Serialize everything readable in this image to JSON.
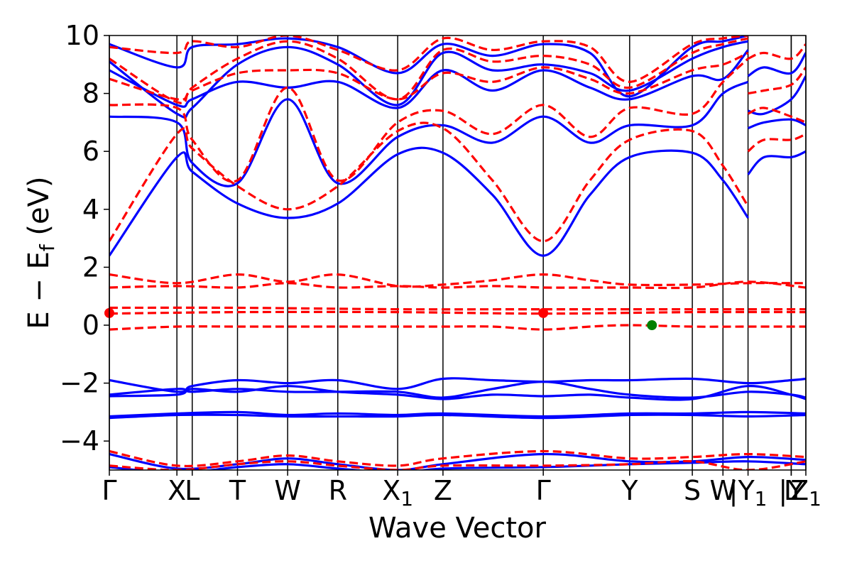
{
  "chart_data": {
    "type": "line",
    "title": "",
    "xlabel": "Wave Vector",
    "ylabel": "E − E",
    "ylabel_sub": "f",
    "ylabel_unit": " (eV)",
    "ylim": [
      -5,
      10
    ],
    "xlim": [
      0,
      1
    ],
    "yticks": [
      10,
      8,
      6,
      4,
      2,
      0,
      -2,
      -4
    ],
    "ytick_labels": [
      "10",
      "8",
      "6",
      "4",
      "2",
      "0",
      "−2",
      "−4"
    ],
    "grid": false,
    "legend": "none",
    "kpoints": [
      {
        "label": "Γ",
        "sub": "",
        "x": 0.0
      },
      {
        "label": "X",
        "sub": "",
        "x": 0.097
      },
      {
        "label": "L",
        "sub": "",
        "x": 0.119
      },
      {
        "label": "T",
        "sub": "",
        "x": 0.184
      },
      {
        "label": "W",
        "sub": "",
        "x": 0.256
      },
      {
        "label": "R",
        "sub": "",
        "x": 0.328
      },
      {
        "label": "X",
        "sub": "1",
        "x": 0.414
      },
      {
        "label": "Z",
        "sub": "",
        "x": 0.479
      },
      {
        "label": "Γ",
        "sub": "",
        "x": 0.623
      },
      {
        "label": "Y",
        "sub": "",
        "x": 0.747
      },
      {
        "label": "S",
        "sub": "",
        "x": 0.837
      },
      {
        "label": "W",
        "sub": "",
        "x": 0.881
      },
      {
        "label": "|Y",
        "sub": "1",
        "x": 0.917
      },
      {
        "label": "L",
        "sub": "",
        "x": 0.979
      },
      {
        "label": "|Y",
        "sub": "",
        "x": 0.979
      },
      {
        "label": "Z",
        "sub": "1",
        "x": 1.0
      }
    ],
    "series": [
      {
        "style": "solid",
        "color": "#0000ff",
        "bands": [
          {
            "x": [
              0,
              0.097,
              0.119,
              0.184,
              0.256,
              0.328,
              0.414,
              0.479,
              0.55,
              0.623,
              0.69,
              0.747,
              0.837,
              0.881,
              0.917
            ],
            "y": [
              2.4,
              5.8,
              5.3,
              4.2,
              3.7,
              4.2,
              5.9,
              5.95,
              4.5,
              2.4,
              4.5,
              5.8,
              5.95,
              5.0,
              3.7
            ]
          },
          {
            "x": [
              0,
              0.097,
              0.119,
              0.184,
              0.256,
              0.328,
              0.414,
              0.479,
              0.55,
              0.623,
              0.69,
              0.747,
              0.837,
              0.881,
              0.917
            ],
            "y": [
              7.2,
              7.0,
              5.6,
              4.9,
              7.8,
              4.9,
              6.5,
              6.9,
              6.3,
              7.2,
              6.3,
              6.9,
              6.9,
              8.0,
              8.4
            ]
          },
          {
            "x": [
              0,
              0.097,
              0.119,
              0.184,
              0.256,
              0.328,
              0.414,
              0.479,
              0.55,
              0.623,
              0.69,
              0.747,
              0.837,
              0.881,
              0.917
            ],
            "y": [
              8.8,
              7.6,
              7.8,
              8.4,
              8.2,
              8.4,
              7.5,
              8.8,
              8.1,
              8.8,
              8.2,
              7.8,
              8.6,
              8.5,
              9.5
            ]
          },
          {
            "x": [
              0,
              0.097,
              0.119,
              0.184,
              0.256,
              0.328,
              0.414,
              0.479,
              0.55,
              0.623,
              0.69,
              0.747,
              0.837,
              0.881,
              0.917
            ],
            "y": [
              9.1,
              7.3,
              7.5,
              9.0,
              9.6,
              9.0,
              7.6,
              9.4,
              8.8,
              9.0,
              8.7,
              8.1,
              9.2,
              9.6,
              9.8
            ]
          },
          {
            "x": [
              0,
              0.097,
              0.119,
              0.184,
              0.256,
              0.328,
              0.414,
              0.479,
              0.55,
              0.623,
              0.69,
              0.747,
              0.837,
              0.881,
              0.917
            ],
            "y": [
              9.7,
              8.9,
              9.6,
              9.7,
              9.9,
              9.6,
              8.7,
              9.7,
              9.3,
              9.7,
              9.4,
              7.9,
              9.6,
              9.8,
              10.0
            ]
          },
          {
            "x": [
              0.917,
              0.94,
              0.979,
              1.0
            ],
            "y": [
              5.2,
              5.8,
              5.8,
              6.0
            ]
          },
          {
            "x": [
              0.917,
              0.94,
              0.979,
              1.0
            ],
            "y": [
              6.8,
              7.0,
              7.1,
              6.9
            ]
          },
          {
            "x": [
              0.917,
              0.94,
              0.979,
              1.0
            ],
            "y": [
              7.4,
              7.3,
              7.8,
              8.6
            ]
          },
          {
            "x": [
              0.917,
              0.94,
              0.979,
              1.0
            ],
            "y": [
              8.6,
              8.9,
              8.7,
              9.4
            ]
          },
          {
            "x": [
              0,
              0.097,
              0.119,
              0.184,
              0.256,
              0.328,
              0.414,
              0.479,
              0.55,
              0.623,
              0.69,
              0.747,
              0.837,
              0.917,
              0.979,
              1.0
            ],
            "y": [
              -1.9,
              -2.3,
              -2.1,
              -1.9,
              -2.0,
              -1.9,
              -2.2,
              -1.85,
              -1.9,
              -1.95,
              -1.9,
              -1.9,
              -1.85,
              -2.0,
              -1.9,
              -1.85
            ]
          },
          {
            "x": [
              0,
              0.097,
              0.119,
              0.184,
              0.256,
              0.328,
              0.414,
              0.479,
              0.55,
              0.623,
              0.69,
              0.747,
              0.837,
              0.917,
              0.979,
              1.0
            ],
            "y": [
              -2.4,
              -2.2,
              -2.3,
              -2.2,
              -2.3,
              -2.3,
              -2.3,
              -2.5,
              -2.2,
              -1.95,
              -2.2,
              -2.4,
              -2.5,
              -2.3,
              -2.4,
              -2.5
            ]
          },
          {
            "x": [
              0,
              0.097,
              0.119,
              0.184,
              0.256,
              0.328,
              0.414,
              0.479,
              0.55,
              0.623,
              0.69,
              0.747,
              0.837,
              0.917,
              0.979,
              1.0
            ],
            "y": [
              -2.45,
              -2.4,
              -2.2,
              -2.3,
              -2.1,
              -2.3,
              -2.4,
              -2.55,
              -2.4,
              -2.45,
              -2.4,
              -2.5,
              -2.55,
              -2.1,
              -2.4,
              -2.55
            ]
          },
          {
            "x": [
              0,
              0.097,
              0.184,
              0.256,
              0.328,
              0.414,
              0.479,
              0.623,
              0.747,
              0.837,
              0.917,
              1.0
            ],
            "y": [
              -3.15,
              -3.05,
              -3.0,
              -3.1,
              -3.05,
              -3.1,
              -3.05,
              -3.15,
              -3.05,
              -3.05,
              -3.0,
              -3.05
            ]
          },
          {
            "x": [
              0,
              0.097,
              0.184,
              0.256,
              0.328,
              0.414,
              0.479,
              0.623,
              0.747,
              0.837,
              0.917,
              1.0
            ],
            "y": [
              -3.2,
              -3.1,
              -3.1,
              -3.15,
              -3.15,
              -3.15,
              -3.1,
              -3.2,
              -3.1,
              -3.1,
              -3.15,
              -3.1
            ]
          },
          {
            "x": [
              0,
              0.097,
              0.184,
              0.256,
              0.328,
              0.414,
              0.479,
              0.623,
              0.747,
              0.837,
              0.917,
              1.0
            ],
            "y": [
              -4.45,
              -4.95,
              -4.8,
              -4.6,
              -4.8,
              -5.0,
              -4.8,
              -4.45,
              -4.7,
              -4.7,
              -4.55,
              -4.65
            ]
          },
          {
            "x": [
              0,
              0.097,
              0.184,
              0.256,
              0.328,
              0.414,
              0.479,
              0.623,
              0.747,
              0.837,
              0.917,
              1.0
            ],
            "y": [
              -4.9,
              -5.1,
              -4.9,
              -4.8,
              -4.95,
              -5.1,
              -4.95,
              -4.9,
              -4.8,
              -4.75,
              -4.7,
              -4.8
            ]
          }
        ]
      },
      {
        "style": "dashed",
        "color": "#ff0000",
        "bands": [
          {
            "x": [
              0,
              0.097,
              0.119,
              0.184,
              0.256,
              0.328,
              0.414,
              0.479,
              0.55,
              0.623,
              0.69,
              0.747,
              0.837,
              0.881,
              0.917
            ],
            "y": [
              2.9,
              6.6,
              6.1,
              4.8,
              4.0,
              4.8,
              6.7,
              6.8,
              5.0,
              2.9,
              5.0,
              6.4,
              6.7,
              5.5,
              4.1
            ]
          },
          {
            "x": [
              0,
              0.097,
              0.119,
              0.184,
              0.256,
              0.328,
              0.414,
              0.479,
              0.55,
              0.623,
              0.69,
              0.747,
              0.837,
              0.881,
              0.917
            ],
            "y": [
              7.6,
              7.5,
              6.4,
              5.0,
              8.2,
              5.0,
              7.0,
              7.4,
              6.6,
              7.6,
              6.5,
              7.5,
              7.3,
              8.4,
              9.2
            ]
          },
          {
            "x": [
              0,
              0.097,
              0.119,
              0.184,
              0.256,
              0.328,
              0.414,
              0.479,
              0.55,
              0.623,
              0.69,
              0.747,
              0.837,
              0.881,
              0.917
            ],
            "y": [
              8.5,
              7.8,
              8.1,
              8.7,
              8.8,
              8.7,
              7.8,
              8.7,
              8.4,
              8.9,
              8.5,
              8.0,
              8.8,
              9.0,
              9.4
            ]
          },
          {
            "x": [
              0,
              0.097,
              0.119,
              0.184,
              0.256,
              0.328,
              0.414,
              0.479,
              0.55,
              0.623,
              0.69,
              0.747,
              0.837,
              0.881,
              0.917
            ],
            "y": [
              9.2,
              7.7,
              8.2,
              9.2,
              9.8,
              9.2,
              7.8,
              9.5,
              9.1,
              9.3,
              9.0,
              8.2,
              9.4,
              9.7,
              9.9
            ]
          },
          {
            "x": [
              0,
              0.097,
              0.119,
              0.184,
              0.256,
              0.328,
              0.414,
              0.479,
              0.55,
              0.623,
              0.69,
              0.747,
              0.837,
              0.881,
              0.917
            ],
            "y": [
              9.6,
              9.4,
              9.8,
              9.6,
              10.0,
              9.5,
              8.8,
              9.9,
              9.5,
              9.8,
              9.6,
              8.4,
              9.7,
              9.9,
              10.0
            ]
          },
          {
            "x": [
              0.917,
              0.94,
              0.979,
              1.0
            ],
            "y": [
              6.0,
              6.4,
              6.4,
              6.6
            ]
          },
          {
            "x": [
              0.917,
              0.94,
              0.979,
              1.0
            ],
            "y": [
              7.3,
              7.5,
              7.2,
              7.0
            ]
          },
          {
            "x": [
              0.917,
              0.94,
              0.979,
              1.0
            ],
            "y": [
              8.0,
              8.1,
              8.3,
              8.9
            ]
          },
          {
            "x": [
              0.917,
              0.94,
              0.979,
              1.0
            ],
            "y": [
              9.2,
              9.4,
              9.2,
              9.7
            ]
          },
          {
            "x": [
              0,
              0.097,
              0.184,
              0.256,
              0.328,
              0.414,
              0.479,
              0.55,
              0.623,
              0.69,
              0.747,
              0.837,
              0.917,
              1.0
            ],
            "y": [
              1.75,
              1.45,
              1.75,
              1.5,
              1.75,
              1.35,
              1.4,
              1.55,
              1.75,
              1.55,
              1.4,
              1.4,
              1.45,
              1.45
            ]
          },
          {
            "x": [
              0,
              0.097,
              0.184,
              0.256,
              0.328,
              0.414,
              0.479,
              0.55,
              0.623,
              0.69,
              0.747,
              0.837,
              0.917,
              1.0
            ],
            "y": [
              1.3,
              1.35,
              1.3,
              1.45,
              1.3,
              1.35,
              1.3,
              1.35,
              1.3,
              1.3,
              1.3,
              1.3,
              1.5,
              1.3
            ]
          },
          {
            "x": [
              0,
              0.184,
              0.414,
              0.623,
              0.837,
              1.0
            ],
            "y": [
              0.6,
              0.6,
              0.55,
              0.55,
              0.55,
              0.55
            ]
          },
          {
            "x": [
              0,
              0.184,
              0.414,
              0.623,
              0.837,
              1.0
            ],
            "y": [
              0.4,
              0.45,
              0.45,
              0.4,
              0.45,
              0.45
            ]
          },
          {
            "x": [
              0,
              0.097,
              0.184,
              0.256,
              0.328,
              0.414,
              0.479,
              0.55,
              0.623,
              0.69,
              0.747,
              0.837,
              0.917,
              1.0
            ],
            "y": [
              -0.15,
              -0.05,
              -0.05,
              -0.05,
              -0.05,
              -0.05,
              -0.05,
              -0.05,
              -0.15,
              -0.05,
              0.0,
              -0.05,
              -0.05,
              -0.05
            ]
          },
          {
            "x": [
              0,
              0.097,
              0.184,
              0.256,
              0.328,
              0.414,
              0.479,
              0.623,
              0.747,
              0.837,
              0.917,
              1.0
            ],
            "y": [
              -4.35,
              -4.85,
              -4.7,
              -4.5,
              -4.7,
              -4.85,
              -4.6,
              -4.35,
              -4.6,
              -4.55,
              -4.45,
              -4.55
            ]
          },
          {
            "x": [
              0,
              0.097,
              0.184,
              0.256,
              0.328,
              0.414,
              0.479,
              0.623,
              0.747,
              0.837,
              0.917,
              1.0
            ],
            "y": [
              -4.85,
              -5.0,
              -4.8,
              -4.7,
              -4.85,
              -5.0,
              -4.85,
              -4.85,
              -4.8,
              -4.7,
              -5.0,
              -4.7
            ]
          }
        ]
      }
    ],
    "points": [
      {
        "x": 0.0,
        "y": 0.42,
        "color": "#ff0000"
      },
      {
        "x": 0.623,
        "y": 0.42,
        "color": "#ff0000"
      },
      {
        "x": 0.779,
        "y": 0.0,
        "color": "#008000"
      }
    ]
  }
}
